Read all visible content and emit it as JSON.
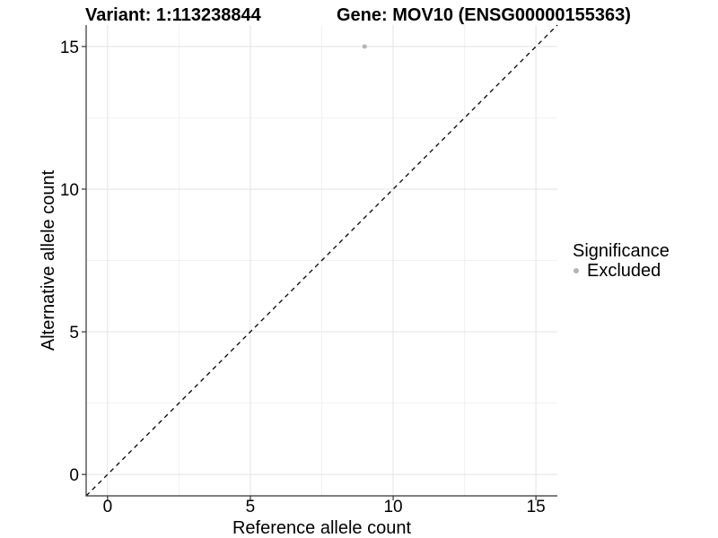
{
  "header": {
    "title_left": "Variant: 1:113238844",
    "title_right": "Gene: MOV10 (ENSG00000155363)"
  },
  "chart_data": {
    "type": "scatter",
    "xlabel": "Reference allele count",
    "ylabel": "Alternative allele count",
    "xlim": [
      -0.75,
      15.75
    ],
    "ylim": [
      -0.75,
      15.75
    ],
    "xticks": [
      0,
      5,
      10,
      15
    ],
    "yticks": [
      0,
      5,
      10,
      15
    ],
    "minor_ticks": [
      2.5,
      7.5,
      12.5
    ],
    "grid": "major+minor",
    "points": [
      {
        "x": 9,
        "y": 15,
        "series": "Excluded",
        "color": "#b4b4b4",
        "radius": 2.5
      }
    ],
    "reference_line": {
      "kind": "abline",
      "slope": 1,
      "intercept": 0,
      "style": "dashed",
      "color": "#000000"
    },
    "legend": {
      "title": "Significance",
      "position": "right",
      "items": [
        {
          "label": "Excluded",
          "color": "#b4b4b4",
          "marker": "circle"
        }
      ]
    },
    "colors": {
      "axis_line": "#333333",
      "grid_major": "#e3e3e3",
      "grid_minor": "#f1f1f1",
      "text": "#000000",
      "background": "#ffffff"
    }
  }
}
